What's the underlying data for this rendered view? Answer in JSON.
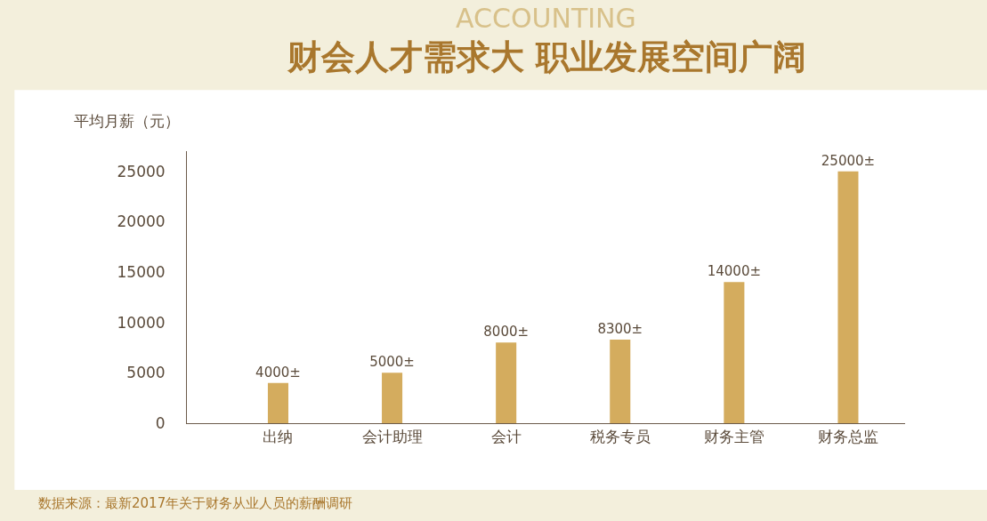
{
  "chart_data": {
    "type": "bar",
    "title": "财会人才需求大 职业发展空间广阔",
    "ylabel": "平均月薪（元）",
    "categories": [
      "出纳",
      "会计助理",
      "会计",
      "税务专员",
      "财务主管",
      "财务总监"
    ],
    "values": [
      4000,
      5000,
      8000,
      8300,
      14000,
      25000
    ],
    "value_labels": [
      "4000±",
      "5000±",
      "8000±",
      "8300±",
      "14000±",
      "25000±"
    ],
    "color": "#d4ac5e",
    "ylim": [
      0,
      27000
    ],
    "yticks": [
      0,
      5000,
      10000,
      15000,
      20000,
      25000
    ],
    "legend": false,
    "annotations": [
      "ACCOUNTING",
      "数据来源：最新2017年关于财务从业人员的薪酬调研"
    ]
  }
}
